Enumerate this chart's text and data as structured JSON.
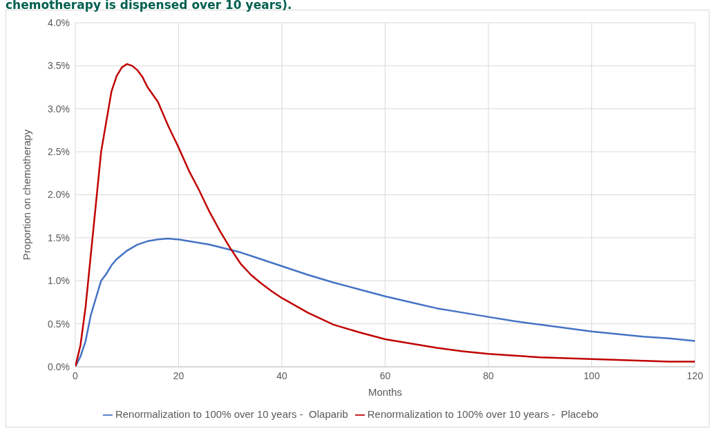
{
  "chart_data": {
    "type": "line",
    "title": "chemotherapy is dispensed over 10 years).",
    "xlabel": "Months",
    "ylabel": "Proportion on chemotherapy",
    "xlim": [
      0,
      120
    ],
    "xticks": [
      0,
      20,
      40,
      60,
      80,
      100,
      120
    ],
    "ylim": [
      0,
      4
    ],
    "yticks": [
      {
        "value": 0,
        "label": "0.0%"
      },
      {
        "value": 0.5,
        "label": "0.5%"
      },
      {
        "value": 1,
        "label": "1.0%"
      },
      {
        "value": 1.5,
        "label": "1.5%"
      },
      {
        "value": 2,
        "label": "2.0%"
      },
      {
        "value": 2.5,
        "label": "2.5%"
      },
      {
        "value": 3,
        "label": "3.0%"
      },
      {
        "value": 3.5,
        "label": "3.5%"
      },
      {
        "value": 4,
        "label": "4.0%"
      }
    ],
    "grid": true,
    "legend": "bottom",
    "marker": "none",
    "line_style": "solid",
    "series": [
      {
        "name": "Renormalization to 100% over 10 years -  Olaparib",
        "color": "#4472c4",
        "x": [
          0,
          1,
          2,
          3,
          4,
          5,
          6,
          7,
          8,
          10,
          12,
          14,
          16,
          18,
          20,
          22,
          24,
          26,
          28,
          30,
          32,
          34,
          36,
          38,
          40,
          45,
          50,
          55,
          60,
          65,
          70,
          75,
          80,
          85,
          90,
          95,
          100,
          105,
          110,
          115,
          120
        ],
        "values": [
          0,
          0.12,
          0.3,
          0.6,
          0.8,
          1.0,
          1.08,
          1.18,
          1.25,
          1.35,
          1.42,
          1.46,
          1.48,
          1.49,
          1.48,
          1.46,
          1.44,
          1.42,
          1.39,
          1.36,
          1.33,
          1.29,
          1.25,
          1.21,
          1.17,
          1.07,
          0.98,
          0.9,
          0.82,
          0.75,
          0.68,
          0.63,
          0.58,
          0.53,
          0.49,
          0.45,
          0.41,
          0.38,
          0.35,
          0.33,
          0.3
        ]
      },
      {
        "name": "Renormalization to 100% over 10 years -  Placebo",
        "color": "#c00000",
        "x": [
          0,
          1,
          2,
          3,
          5,
          7,
          8,
          9,
          10,
          11,
          12,
          13,
          14,
          16,
          18,
          20,
          22,
          24,
          26,
          28,
          30,
          32,
          34,
          36,
          38,
          40,
          45,
          50,
          55,
          60,
          65,
          70,
          75,
          80,
          85,
          90,
          95,
          100,
          105,
          110,
          115,
          120
        ],
        "values": [
          0,
          0.25,
          0.7,
          1.3,
          2.5,
          3.2,
          3.38,
          3.48,
          3.52,
          3.5,
          3.45,
          3.37,
          3.25,
          3.08,
          2.8,
          2.55,
          2.28,
          2.05,
          1.8,
          1.58,
          1.38,
          1.2,
          1.07,
          0.97,
          0.88,
          0.8,
          0.63,
          0.49,
          0.4,
          0.32,
          0.27,
          0.22,
          0.18,
          0.15,
          0.13,
          0.11,
          0.1,
          0.09,
          0.08,
          0.07,
          0.06,
          0.06
        ]
      }
    ]
  }
}
